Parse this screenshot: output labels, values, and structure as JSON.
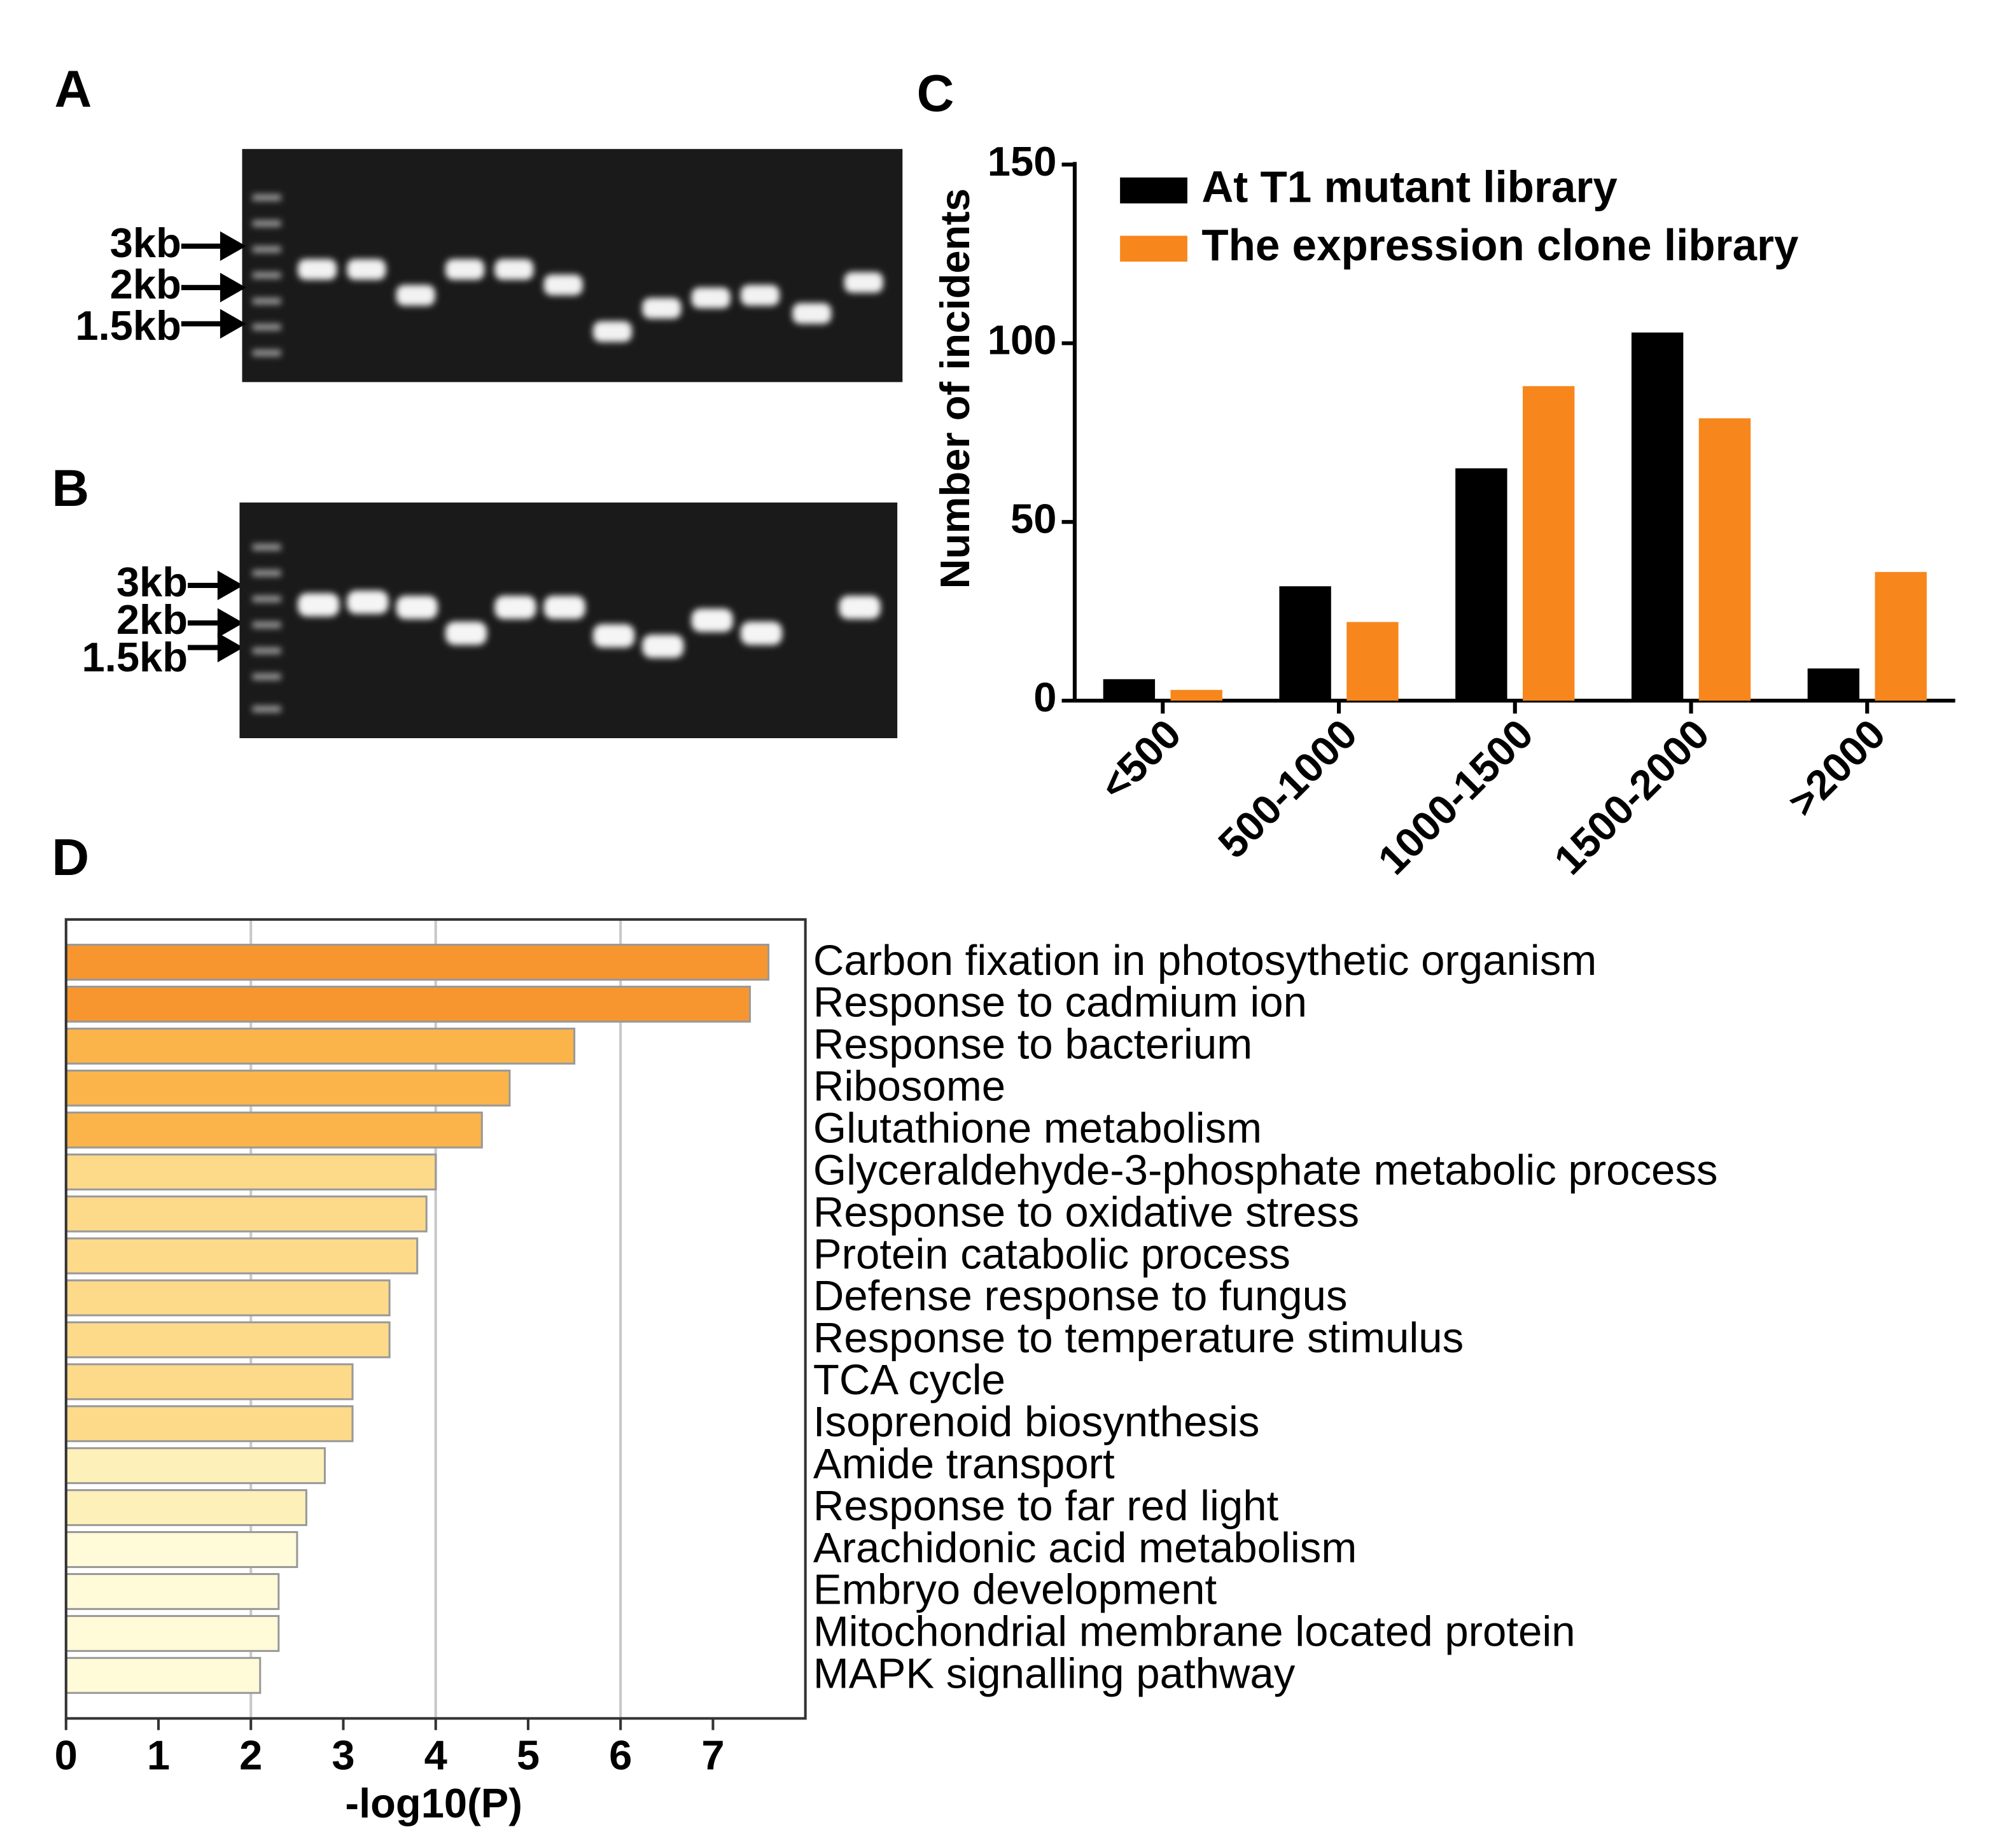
{
  "panel_labels": [
    "A",
    "B",
    "C",
    "D"
  ],
  "gels": [
    {
      "markers": [
        "3kb",
        "2kb",
        "1.5kb"
      ]
    },
    {
      "markers": [
        "3kb",
        "2kb",
        "1.5kb"
      ]
    }
  ],
  "chart_data": [
    {
      "type": "bar",
      "ylabel": "Number of incidents",
      "categories": [
        "<500",
        "500-1000",
        "1000-1500",
        "1500-2000",
        ">2000"
      ],
      "series": [
        {
          "name": "At T1 mutant library",
          "color": "#000000",
          "values": [
            6,
            32,
            65,
            103,
            9
          ]
        },
        {
          "name": "The expression clone library",
          "color": "#f7861c",
          "values": [
            3,
            22,
            88,
            79,
            36
          ]
        }
      ],
      "ylim": [
        0,
        150
      ],
      "yticks": [
        0,
        50,
        100,
        150
      ],
      "legend": "upper left"
    },
    {
      "type": "barh",
      "xlabel": "-log10(P)",
      "categories": [
        "Carbon fixation in photosythetic organism",
        "Response to cadmium ion",
        "Response to bacterium",
        "Ribosome",
        "Glutathione metabolism",
        "Glyceraldehyde-3-phosphate metabolic process",
        "Response to oxidative stress",
        "Protein catabolic process",
        "Defense response to fungus",
        "Response to temperature stimulus",
        "TCA cycle",
        "Isoprenoid biosynthesis",
        "Amide transport",
        "Response to far red light",
        "Arachidonic acid metabolism",
        "Embryo development",
        "Mitochondrial membrane located protein",
        "MAPK signalling pathway"
      ],
      "values": [
        7.6,
        7.4,
        5.5,
        4.8,
        4.5,
        4.0,
        3.9,
        3.8,
        3.5,
        3.5,
        3.1,
        3.1,
        2.8,
        2.6,
        2.5,
        2.3,
        2.3,
        2.1
      ],
      "colors": [
        "#f7962e",
        "#f7962e",
        "#fbb44a",
        "#fbb44a",
        "#fbb44a",
        "#fdd98a",
        "#fdd98a",
        "#fdd98a",
        "#fdd98a",
        "#fdd98a",
        "#fdd98a",
        "#fdd98a",
        "#fdf0b8",
        "#fdf0b8",
        "#fffad8",
        "#fffad8",
        "#fffad8",
        "#fffad8"
      ],
      "xlim": [
        0,
        8
      ],
      "xticks": [
        0,
        1,
        2,
        3,
        4,
        5,
        6,
        7
      ],
      "grid": [
        2,
        4,
        6
      ]
    }
  ]
}
